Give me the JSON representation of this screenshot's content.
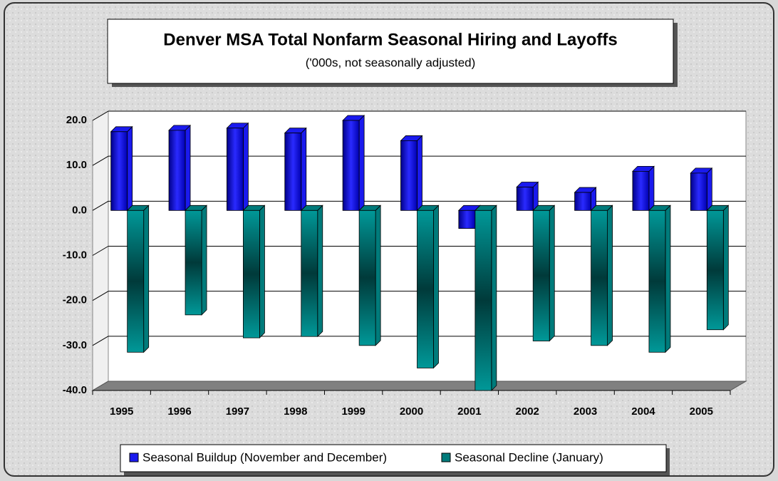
{
  "chart_data": {
    "type": "bar3d",
    "title": "Denver MSA Total Nonfarm Seasonal Hiring and Layoffs",
    "subtitle": "('000s, not seasonally adjusted)",
    "categories": [
      "1995",
      "1996",
      "1997",
      "1998",
      "1999",
      "2000",
      "2001",
      "2002",
      "2003",
      "2004",
      "2005"
    ],
    "series": [
      {
        "name": "Seasonal Buildup (November and December)",
        "color": "#1a1aee",
        "values": [
          17.5,
          17.8,
          18.3,
          17.2,
          20.0,
          15.5,
          -4.0,
          5.2,
          4.0,
          8.7,
          8.3
        ]
      },
      {
        "name": "Seasonal Decline (January)",
        "color": "#007b7b",
        "values": [
          -31.5,
          -23.2,
          -28.3,
          -28.0,
          -30.0,
          -35.0,
          -40.0,
          -29.0,
          -30.0,
          -31.5,
          -26.5
        ]
      }
    ],
    "ylim": [
      -40,
      20
    ],
    "yticks": [
      {
        "value": -40,
        "label": "-40.0"
      },
      {
        "value": -30,
        "label": "-30.0"
      },
      {
        "value": -20,
        "label": "-20.0"
      },
      {
        "value": -10,
        "label": "-10.0"
      },
      {
        "value": 0,
        "label": "0.0"
      },
      {
        "value": 10,
        "label": "10.0"
      },
      {
        "value": 20,
        "label": "20.0"
      }
    ],
    "grid": true,
    "legend": "bottom"
  }
}
